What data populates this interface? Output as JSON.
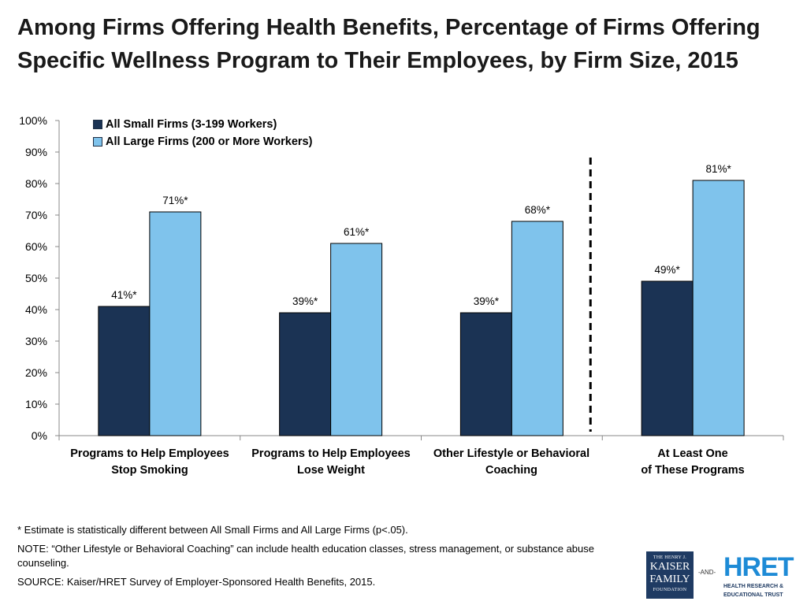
{
  "title_lines": [
    "Among Firms Offering Health Benefits, Percentage of Firms Offering",
    "Specific Wellness Program to Their Employees, by Firm Size, 2015"
  ],
  "chart_data": {
    "type": "bar",
    "title": "Among Firms Offering Health Benefits, Percentage of Firms Offering Specific Wellness Program to Their Employees, by Firm Size, 2015",
    "categories": [
      [
        "Programs to Help Employees",
        "Stop Smoking"
      ],
      [
        "Programs to Help Employees",
        "Lose Weight"
      ],
      [
        "Other Lifestyle or Behavioral",
        "Coaching"
      ],
      [
        "At Least One",
        "of These Programs"
      ]
    ],
    "series": [
      {
        "name": "All Small Firms (3-199 Workers)",
        "color": "#1b3354",
        "values": [
          41,
          39,
          39,
          49
        ],
        "labels": [
          "41%*",
          "39%*",
          "39%*",
          "49%*"
        ]
      },
      {
        "name": "All Large Firms (200 or More Workers)",
        "color": "#7fc3ec",
        "values": [
          71,
          61,
          68,
          81
        ],
        "labels": [
          "71%*",
          "61%*",
          "68%*",
          "81%*"
        ]
      }
    ],
    "y_ticks": [
      "0%",
      "10%",
      "20%",
      "30%",
      "40%",
      "50%",
      "60%",
      "70%",
      "80%",
      "90%",
      "100%"
    ],
    "ylim": [
      0,
      100
    ],
    "xlabel": "",
    "ylabel": "",
    "separator_after_category": 3,
    "legend_position": "top-left"
  },
  "footnotes": {
    "estimate": "* Estimate is statistically different between All Small Firms and All Large Firms (p<.05).",
    "note": "NOTE: “Other Lifestyle or Behavioral Coaching” can include health education classes, stress management, or substance abuse counseling.",
    "source": "SOURCE:  Kaiser/HRET Survey of Employer-Sponsored Health Benefits, 2015."
  },
  "logos": {
    "kff_lines": [
      "THE HENRY J.",
      "KAISER",
      "FAMILY",
      "FOUNDATION"
    ],
    "and_text": "-AND-",
    "hret_word": "HRET",
    "hret_sub_lines": [
      "HEALTH RESEARCH &",
      "EDUCATIONAL TRUST"
    ]
  }
}
